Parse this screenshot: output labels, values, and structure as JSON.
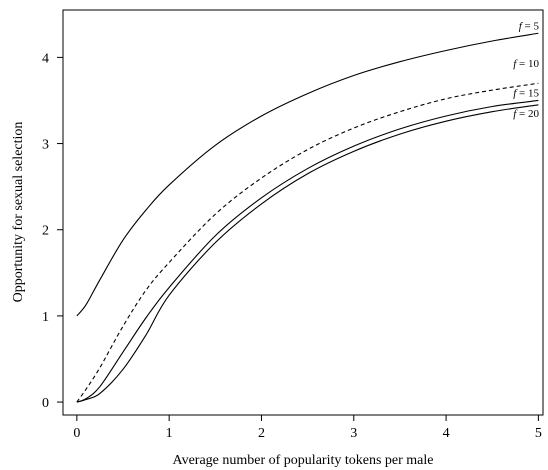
{
  "chart_data": {
    "type": "line",
    "title": "",
    "xlabel": "Average number of popularity tokens per male",
    "ylabel": "Opportunity for sexual selection",
    "xlim": [
      -0.15,
      5.05
    ],
    "ylim": [
      -0.15,
      4.55
    ],
    "x_ticks": [
      0,
      1,
      2,
      3,
      4,
      5
    ],
    "y_ticks": [
      0,
      1,
      2,
      3,
      4
    ],
    "grid": false,
    "legend": "none",
    "series": [
      {
        "name": "f = 5",
        "label_var": "f",
        "label_value": "= 5",
        "style": "solid",
        "x": [
          0,
          0.1,
          0.25,
          0.5,
          0.75,
          1.0,
          1.5,
          2.0,
          2.5,
          3.0,
          3.5,
          4.0,
          4.5,
          5.0
        ],
        "y": [
          1.0,
          1.13,
          1.42,
          1.88,
          2.23,
          2.52,
          2.98,
          3.32,
          3.58,
          3.79,
          3.95,
          4.08,
          4.19,
          4.28
        ]
      },
      {
        "name": "f = 10",
        "label_var": "f",
        "label_value": "= 10",
        "style": "dashed",
        "x": [
          0,
          0.1,
          0.25,
          0.5,
          0.75,
          1.0,
          1.5,
          2.0,
          2.5,
          3.0,
          3.5,
          4.0,
          4.5,
          5.0
        ],
        "y": [
          0.0,
          0.15,
          0.4,
          0.88,
          1.3,
          1.62,
          2.18,
          2.6,
          2.93,
          3.18,
          3.37,
          3.52,
          3.62,
          3.7
        ]
      },
      {
        "name": "f = 15",
        "label_var": "f",
        "label_value": "= 15",
        "style": "solid",
        "x": [
          0,
          0.1,
          0.25,
          0.5,
          0.75,
          1.0,
          1.5,
          2.0,
          2.5,
          3.0,
          3.5,
          4.0,
          4.5,
          5.0
        ],
        "y": [
          0.0,
          0.04,
          0.18,
          0.58,
          0.98,
          1.33,
          1.93,
          2.37,
          2.71,
          2.97,
          3.17,
          3.32,
          3.43,
          3.5
        ]
      },
      {
        "name": "f = 20",
        "label_var": "f",
        "label_value": "= 20",
        "style": "solid",
        "x": [
          0,
          0.1,
          0.25,
          0.5,
          0.75,
          1.0,
          1.5,
          2.0,
          2.5,
          3.0,
          3.5,
          4.0,
          4.5,
          5.0
        ],
        "y": [
          0.0,
          0.03,
          0.1,
          0.38,
          0.78,
          1.24,
          1.85,
          2.3,
          2.65,
          2.91,
          3.11,
          3.26,
          3.37,
          3.45
        ]
      }
    ]
  }
}
